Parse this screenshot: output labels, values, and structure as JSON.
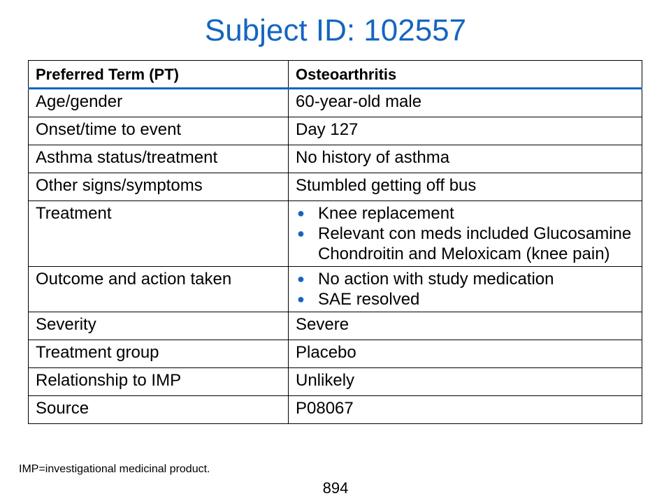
{
  "title": "Subject ID: 102557",
  "table": {
    "header": [
      "Preferred Term (PT)",
      "Osteoarthritis"
    ],
    "rows": [
      {
        "label": "Age/gender",
        "value": "60-year-old male"
      },
      {
        "label": "Onset/time to event",
        "value": "Day 127"
      },
      {
        "label": "Asthma status/treatment",
        "value": "No history of asthma"
      },
      {
        "label": "Other signs/symptoms",
        "value": "Stumbled getting off bus"
      },
      {
        "label": "Treatment",
        "bullets": [
          "Knee replacement",
          "Relevant con meds included Glucosamine Chondroitin and Meloxicam (knee pain)"
        ]
      },
      {
        "label": "Outcome and action taken",
        "bullets": [
          "No action with study medication",
          "SAE resolved"
        ]
      },
      {
        "label": "Severity",
        "value": "Severe"
      },
      {
        "label": "Treatment group",
        "value": "Placebo"
      },
      {
        "label": "Relationship to IMP",
        "value": "Unlikely"
      },
      {
        "label": "Source",
        "value": "P08067"
      }
    ]
  },
  "footnote": "IMP=investigational medicinal product.",
  "page_number": "894",
  "colors": {
    "title": "#1565c0",
    "bullet": "#1565c0",
    "header_rule": "#1565c0"
  },
  "icons": {
    "bullet": "bullet-dot-icon"
  }
}
